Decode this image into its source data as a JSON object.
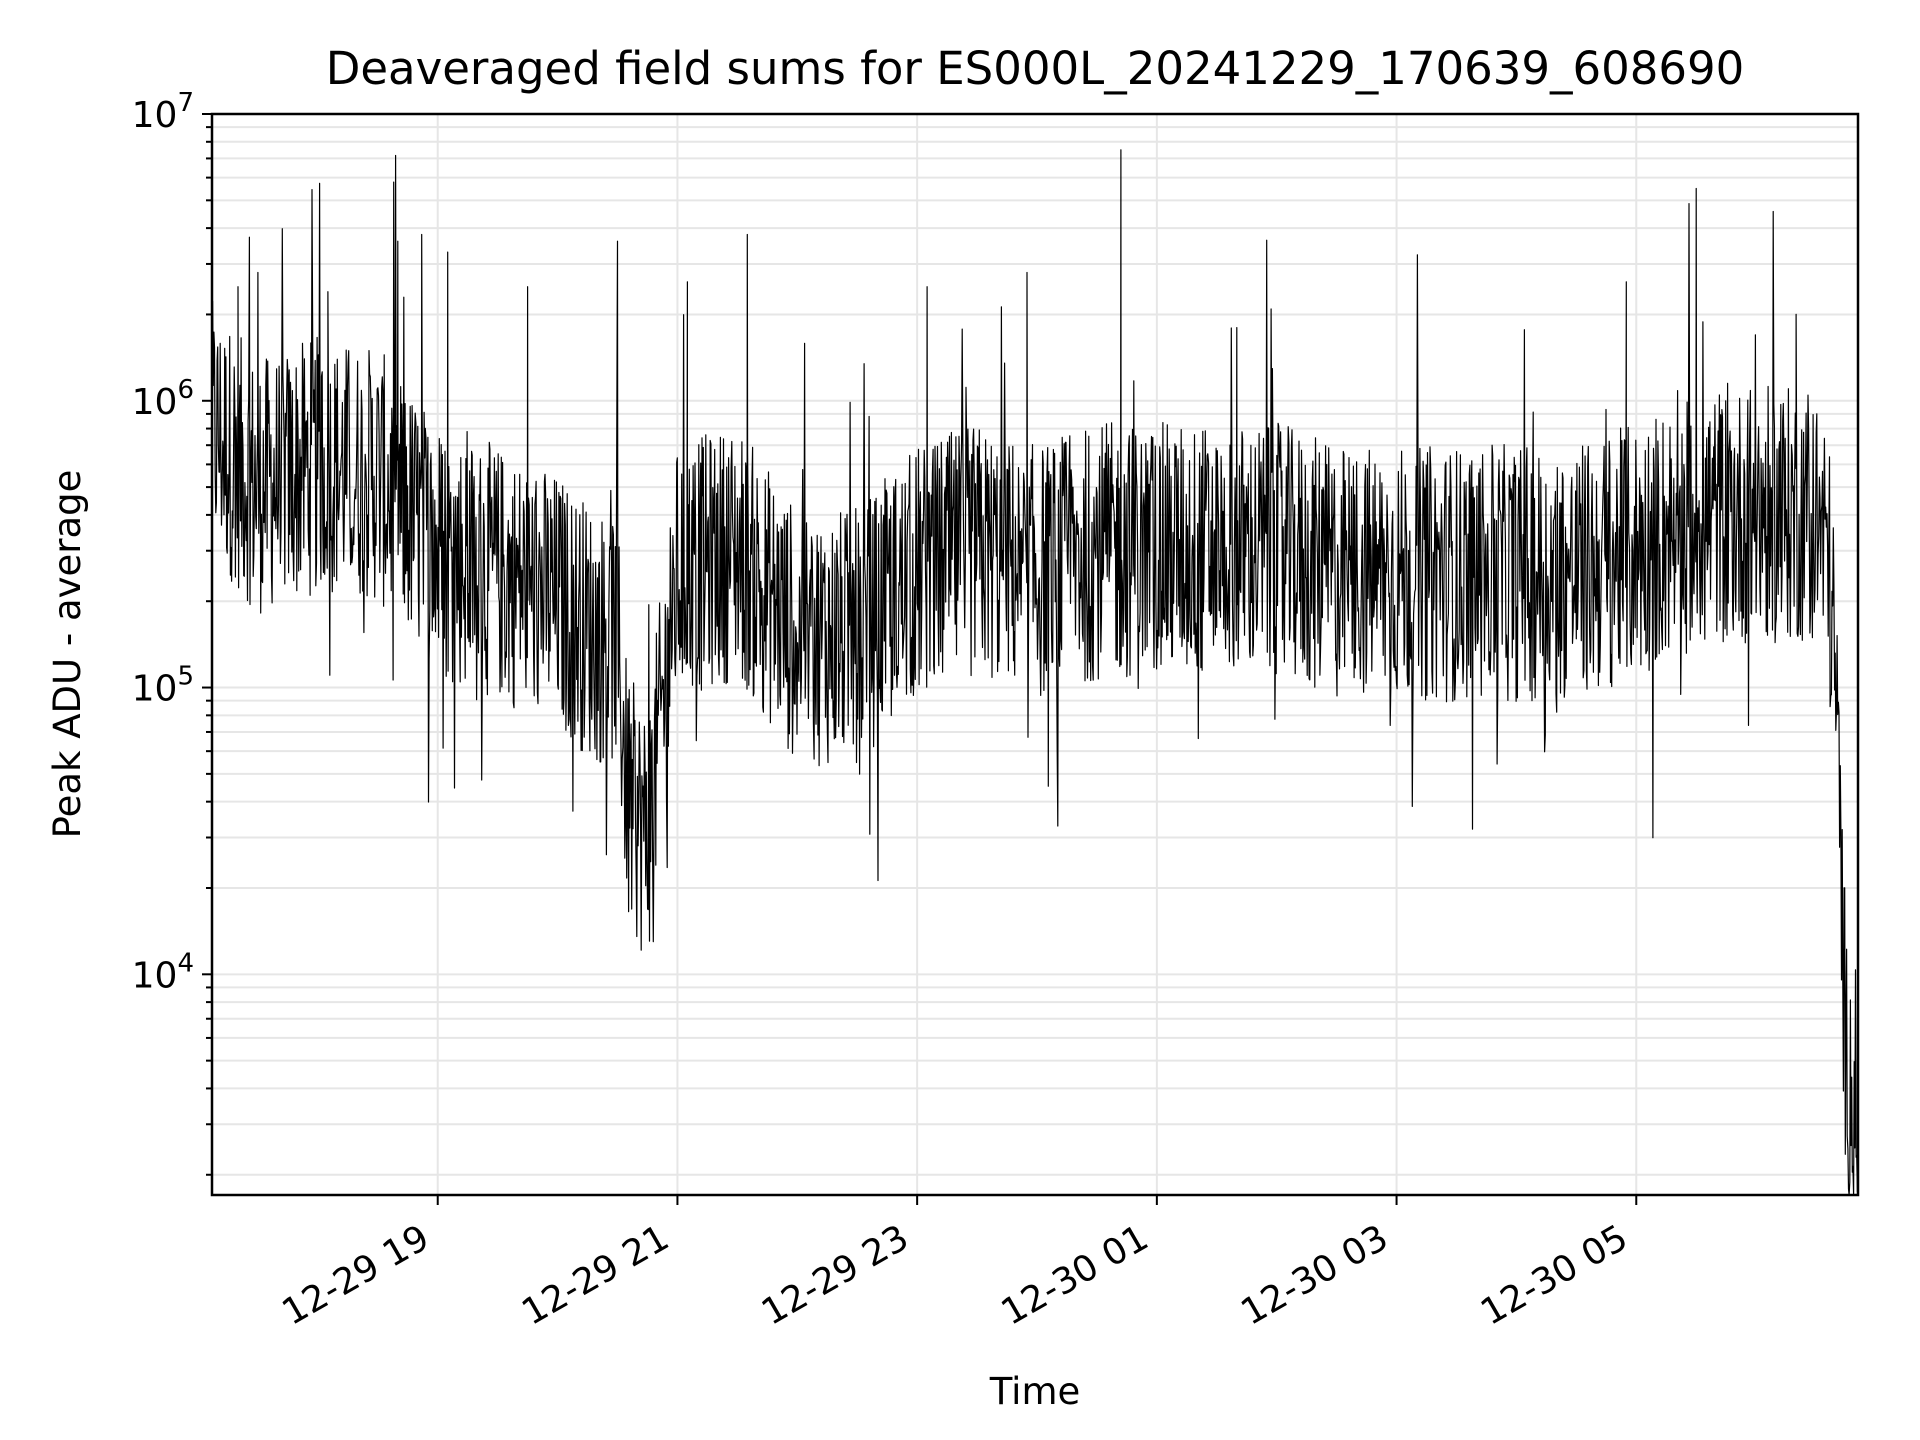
{
  "chart_data": {
    "type": "line",
    "title": "Deaveraged field sums for ES000L_20241229_170639_608690",
    "xlabel": "Time",
    "ylabel": "Peak ADU - average",
    "yscale": "log",
    "ylim": [
      1700,
      10000000
    ],
    "xlim": [
      "2024-12-29 17:07",
      "2024-12-30 06:51"
    ],
    "grid": true,
    "x_ticks": [
      {
        "t": "2024-12-29 19:00",
        "label": "12-29 19"
      },
      {
        "t": "2024-12-29 21:00",
        "label": "12-29 21"
      },
      {
        "t": "2024-12-29 23:00",
        "label": "12-29 23"
      },
      {
        "t": "2024-12-30 01:00",
        "label": "12-30 01"
      },
      {
        "t": "2024-12-30 03:00",
        "label": "12-30 03"
      },
      {
        "t": "2024-12-30 05:00",
        "label": "12-30 05"
      }
    ],
    "y_ticks": [
      {
        "value": 10000,
        "base": "10",
        "exp": "4"
      },
      {
        "value": 100000,
        "base": "10",
        "exp": "5"
      },
      {
        "value": 1000000,
        "base": "10",
        "exp": "6"
      },
      {
        "value": 10000000,
        "base": "10",
        "exp": "7"
      }
    ],
    "series": [
      {
        "color": "#000000",
        "x": [
          "2024-12-29 17:07",
          "2024-12-29 17:30",
          "2024-12-29 18:00",
          "2024-12-29 18:30",
          "2024-12-29 19:00",
          "2024-12-29 19:30",
          "2024-12-29 20:00",
          "2024-12-29 20:20",
          "2024-12-29 20:30",
          "2024-12-29 20:35",
          "2024-12-29 20:40",
          "2024-12-29 20:45",
          "2024-12-29 21:00",
          "2024-12-29 21:30",
          "2024-12-29 22:00",
          "2024-12-29 22:30",
          "2024-12-29 23:00",
          "2024-12-29 23:30",
          "2024-12-30 00:00",
          "2024-12-30 00:30",
          "2024-12-30 01:00",
          "2024-12-30 01:30",
          "2024-12-30 02:00",
          "2024-12-30 02:30",
          "2024-12-30 03:00",
          "2024-12-30 03:30",
          "2024-12-30 04:00",
          "2024-12-30 04:30",
          "2024-12-30 05:00",
          "2024-12-30 05:30",
          "2024-12-30 06:00",
          "2024-12-30 06:30",
          "2024-12-30 06:36",
          "2024-12-30 06:40",
          "2024-12-30 06:45",
          "2024-12-30 06:51"
        ],
        "y": [
          800000,
          500000,
          600000,
          550000,
          300000,
          250000,
          200000,
          150000,
          150000,
          40000,
          35000,
          30000,
          250000,
          300000,
          150000,
          150000,
          250000,
          300000,
          250000,
          300000,
          300000,
          300000,
          300000,
          250000,
          250000,
          250000,
          250000,
          250000,
          300000,
          400000,
          400000,
          400000,
          300000,
          100000,
          5000,
          3500
        ]
      }
    ],
    "peaks": [
      {
        "t": "2024-12-29 17:20",
        "y": 2500000
      },
      {
        "t": "2024-12-29 17:30",
        "y": 2800000
      },
      {
        "t": "2024-12-29 18:05",
        "y": 2400000
      },
      {
        "t": "2024-12-29 18:40",
        "y": 3600000
      },
      {
        "t": "2024-12-29 18:52",
        "y": 3800000
      },
      {
        "t": "2024-12-29 19:05",
        "y": 3300000
      },
      {
        "t": "2024-12-29 19:45",
        "y": 2500000
      },
      {
        "t": "2024-12-29 20:30",
        "y": 3600000
      },
      {
        "t": "2024-12-29 21:05",
        "y": 2600000
      },
      {
        "t": "2024-12-29 21:35",
        "y": 3800000
      },
      {
        "t": "2024-12-29 23:05",
        "y": 2500000
      },
      {
        "t": "2024-12-29 23:55",
        "y": 2800000
      },
      {
        "t": "2024-12-30 00:42",
        "y": 7500000
      },
      {
        "t": "2024-12-30 01:40",
        "y": 1800000
      },
      {
        "t": "2024-12-30 04:55",
        "y": 2600000
      },
      {
        "t": "2024-12-30 05:30",
        "y": 5500000
      },
      {
        "t": "2024-12-30 06:20",
        "y": 2000000
      }
    ]
  }
}
